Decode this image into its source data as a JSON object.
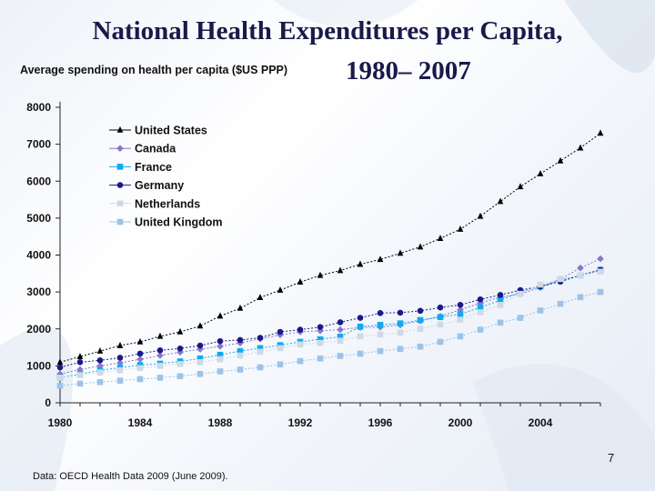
{
  "slide": {
    "title_line1": "National Health Expenditures per Capita,",
    "title_line2": "1980– 2007",
    "source": "Data: OECD Health Data 2009 (June 2009).",
    "page_number": "7"
  },
  "chart_data": {
    "type": "line",
    "title": "National Health Expenditures per Capita, 1980– 2007",
    "ylabel": "Average spending on health per capita ($US PPP)",
    "xlabel": "",
    "xlim": [
      1980,
      2007
    ],
    "ylim": [
      0,
      8000
    ],
    "x_ticks": [
      1980,
      1984,
      1988,
      1992,
      1996,
      2000,
      2004
    ],
    "y_ticks": [
      0,
      1000,
      2000,
      3000,
      4000,
      5000,
      6000,
      7000,
      8000
    ],
    "legend_position": "top-left",
    "grid": false,
    "x": [
      1980,
      1981,
      1982,
      1983,
      1984,
      1985,
      1986,
      1987,
      1988,
      1989,
      1990,
      1991,
      1992,
      1993,
      1994,
      1995,
      1996,
      1997,
      1998,
      1999,
      2000,
      2001,
      2002,
      2003,
      2004,
      2005,
      2006,
      2007
    ],
    "series": [
      {
        "name": "United States",
        "color": "#000000",
        "marker": "triangle",
        "values": [
          1100,
          1250,
          1400,
          1550,
          1650,
          1800,
          1920,
          2080,
          2350,
          2560,
          2850,
          3050,
          3270,
          3450,
          3580,
          3750,
          3880,
          4050,
          4220,
          4450,
          4700,
          5050,
          5450,
          5850,
          6200,
          6550,
          6900,
          7300
        ]
      },
      {
        "name": "Canada",
        "color": "#8877cc",
        "marker": "diamond",
        "values": [
          780,
          900,
          1000,
          1080,
          1180,
          1280,
          1370,
          1450,
          1530,
          1620,
          1730,
          1840,
          1920,
          1950,
          1980,
          2040,
          2050,
          2110,
          2220,
          2340,
          2520,
          2700,
          2860,
          2950,
          3120,
          3350,
          3650,
          3900
        ]
      },
      {
        "name": "France",
        "color": "#11aaee",
        "marker": "square",
        "values": [
          680,
          780,
          880,
          950,
          1020,
          1060,
          1120,
          1200,
          1300,
          1400,
          1480,
          1560,
          1650,
          1720,
          1790,
          2060,
          2110,
          2150,
          2240,
          2320,
          2400,
          2580,
          2780,
          3000,
          3150,
          3320,
          3450,
          3600
        ]
      },
      {
        "name": "Germany",
        "color": "#1a1a8c",
        "marker": "circle",
        "values": [
          960,
          1100,
          1150,
          1220,
          1330,
          1420,
          1470,
          1550,
          1670,
          1700,
          1760,
          1920,
          1980,
          2050,
          2180,
          2300,
          2430,
          2440,
          2490,
          2580,
          2650,
          2800,
          2920,
          3050,
          3150,
          3280,
          3450,
          3600
        ]
      },
      {
        "name": "Netherlands",
        "color": "#cfd9e6",
        "marker": "square",
        "values": [
          680,
          750,
          820,
          880,
          940,
          1000,
          1050,
          1100,
          1180,
          1280,
          1380,
          1480,
          1580,
          1620,
          1680,
          1800,
          1850,
          1900,
          2000,
          2120,
          2250,
          2450,
          2650,
          2950,
          3200,
          3350,
          3450,
          3550
        ]
      },
      {
        "name": "United Kingdom",
        "color": "#9cc3e8",
        "marker": "square",
        "values": [
          460,
          520,
          560,
          600,
          640,
          680,
          720,
          780,
          850,
          900,
          960,
          1040,
          1130,
          1200,
          1270,
          1330,
          1400,
          1460,
          1520,
          1650,
          1800,
          1980,
          2170,
          2300,
          2500,
          2680,
          2860,
          3000
        ]
      }
    ]
  }
}
